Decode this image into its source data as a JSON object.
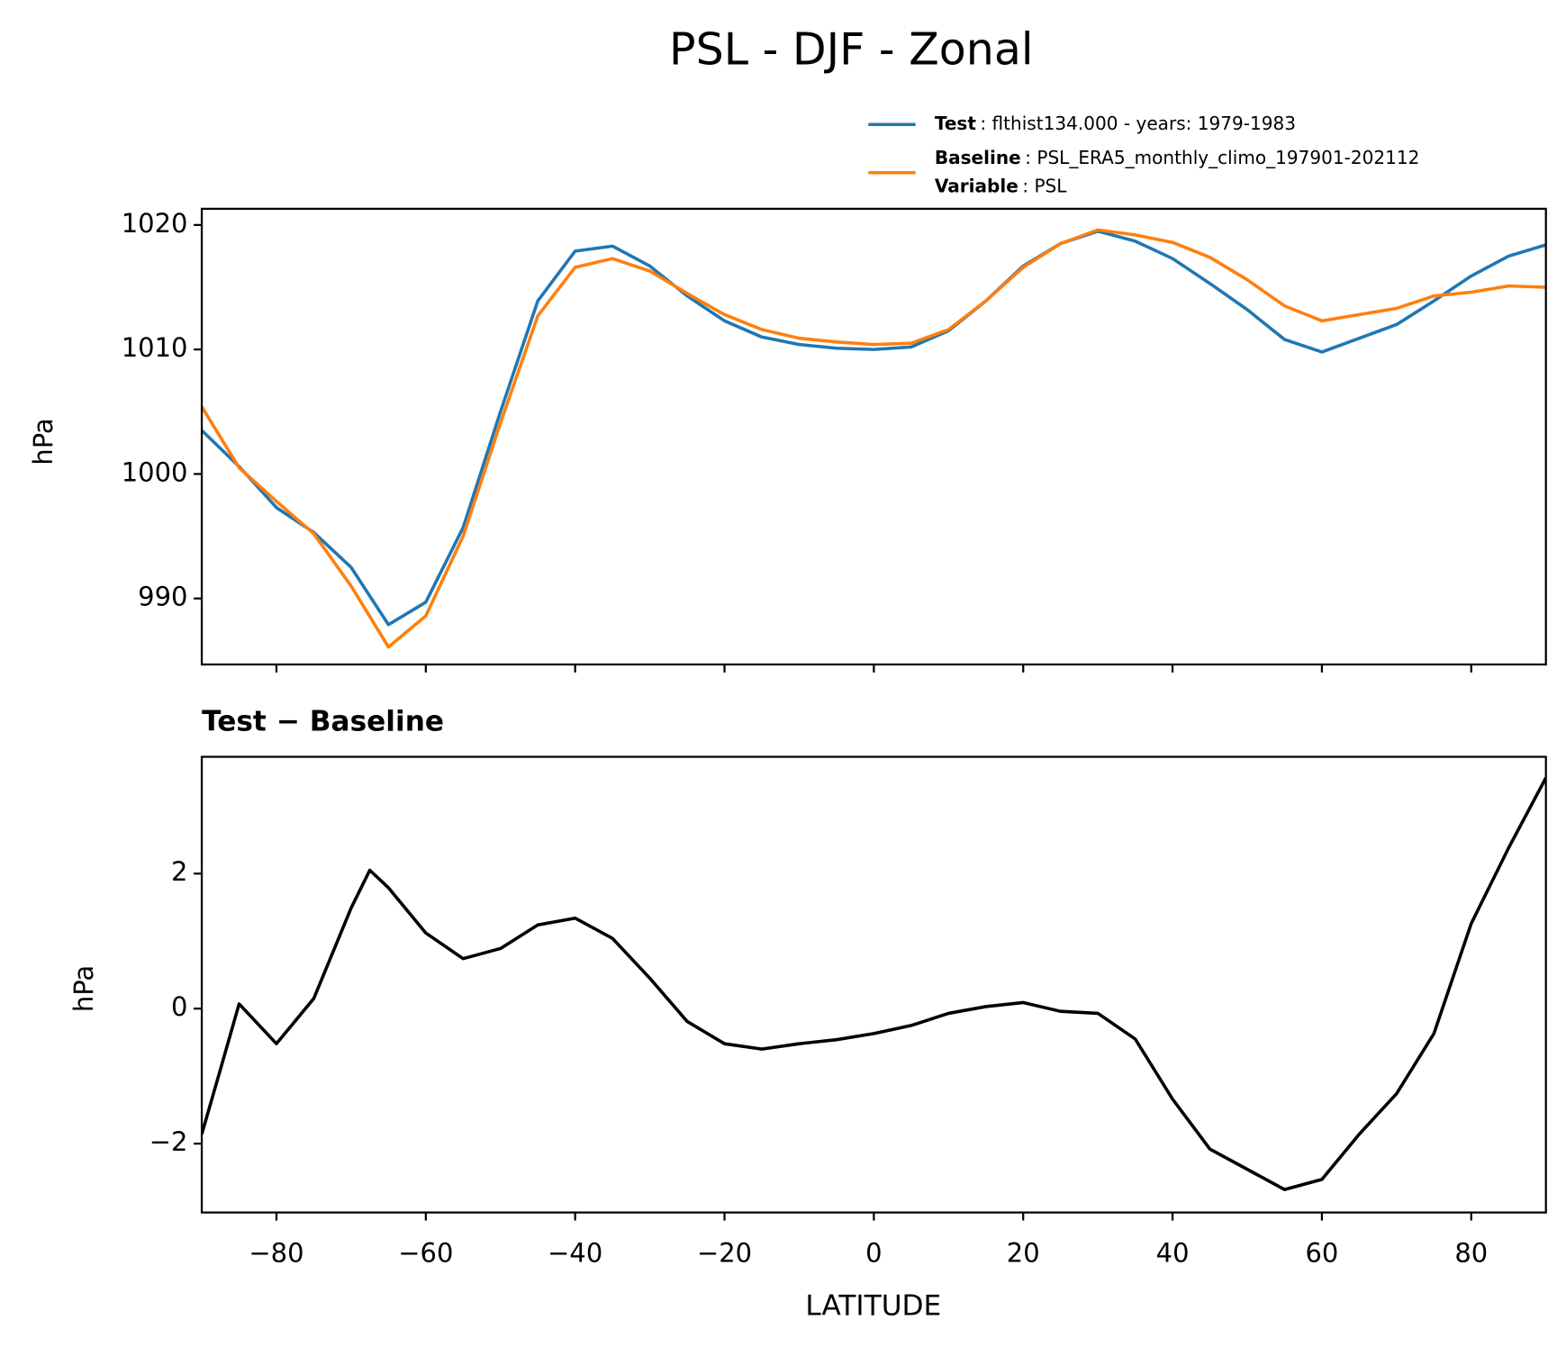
{
  "chart_data": [
    {
      "type": "line",
      "title": "PSL - DJF - Zonal",
      "ylabel": "hPa",
      "x": [
        -90,
        -85,
        -80,
        -75,
        -70,
        -65,
        -60,
        -55,
        -50,
        -45,
        -40,
        -35,
        -30,
        -25,
        -20,
        -15,
        -10,
        -5,
        0,
        5,
        10,
        15,
        20,
        25,
        30,
        35,
        40,
        45,
        50,
        55,
        60,
        65,
        70,
        75,
        80,
        85,
        90
      ],
      "series": [
        {
          "name": "Test",
          "color": "#1f77b4",
          "detail": ": flthist134.000 - years: 1979-1983",
          "values": [
            1003.5,
            1000.6,
            997.3,
            995.3,
            992.5,
            987.9,
            989.7,
            995.7,
            1005.0,
            1013.9,
            1017.9,
            1018.3,
            1016.7,
            1014.3,
            1012.3,
            1011.0,
            1010.4,
            1010.1,
            1010.0,
            1010.2,
            1011.5,
            1013.9,
            1016.7,
            1018.5,
            1019.5,
            1018.7,
            1017.3,
            1015.3,
            1013.2,
            1010.8,
            1009.8,
            1010.9,
            1012.0,
            1013.9,
            1015.9,
            1017.5,
            1018.4
          ]
        },
        {
          "name": "Baseline",
          "color": "#ff7f0e",
          "detail": ": PSL_ERA5_monthly_climo_197901-202112",
          "extra_key": "Variable",
          "extra_detail": ": PSL",
          "values": [
            1005.4,
            1000.5,
            997.8,
            995.2,
            991.0,
            986.1,
            988.6,
            995.0,
            1004.1,
            1012.7,
            1016.6,
            1017.3,
            1016.3,
            1014.5,
            1012.8,
            1011.6,
            1010.9,
            1010.6,
            1010.4,
            1010.5,
            1011.6,
            1013.9,
            1016.6,
            1018.5,
            1019.6,
            1019.2,
            1018.6,
            1017.4,
            1015.6,
            1013.5,
            1012.3,
            1012.8,
            1013.3,
            1014.3,
            1014.6,
            1015.1,
            1015.0
          ]
        }
      ],
      "xlim": [
        -90,
        90
      ],
      "xticks": [
        -80,
        -60,
        -40,
        -20,
        0,
        20,
        40,
        60,
        80
      ],
      "ylim": [
        984.7,
        1021.3
      ],
      "yticks": [
        990,
        1000,
        1010,
        1020
      ]
    },
    {
      "type": "line",
      "title": "Test − Baseline",
      "ylabel": "hPa",
      "xlabel": "LATITUDE",
      "color": "#000000",
      "x": [
        -90,
        -87.5,
        -85,
        -80,
        -75,
        -70,
        -67.5,
        -65,
        -60,
        -55,
        -50,
        -45,
        -40,
        -35,
        -30,
        -25,
        -20,
        -15,
        -10,
        -5,
        0,
        5,
        10,
        15,
        20,
        25,
        30,
        35,
        40,
        45,
        50,
        55,
        60,
        65,
        70,
        75,
        80,
        85,
        90
      ],
      "values": [
        -1.86,
        -0.9,
        0.07,
        -0.52,
        0.15,
        1.49,
        2.05,
        1.79,
        1.12,
        0.74,
        0.89,
        1.24,
        1.34,
        1.04,
        0.45,
        -0.19,
        -0.52,
        -0.6,
        -0.52,
        -0.46,
        -0.37,
        -0.25,
        -0.07,
        0.03,
        0.09,
        -0.04,
        -0.07,
        -0.45,
        -1.34,
        -2.08,
        -2.38,
        -2.68,
        -2.53,
        -1.86,
        -1.26,
        -0.37,
        1.26,
        2.38,
        3.42
      ],
      "xlim": [
        -90,
        90
      ],
      "xticks": [
        {
          "value": -80,
          "label": "−80"
        },
        {
          "value": -60,
          "label": "−60"
        },
        {
          "value": -40,
          "label": "−40"
        },
        {
          "value": -20,
          "label": "−20"
        },
        0,
        20,
        40,
        60,
        80
      ],
      "ylim": [
        -3.02,
        3.73
      ],
      "yticks": [
        {
          "value": -2,
          "label": "−2"
        },
        0,
        2
      ]
    }
  ]
}
